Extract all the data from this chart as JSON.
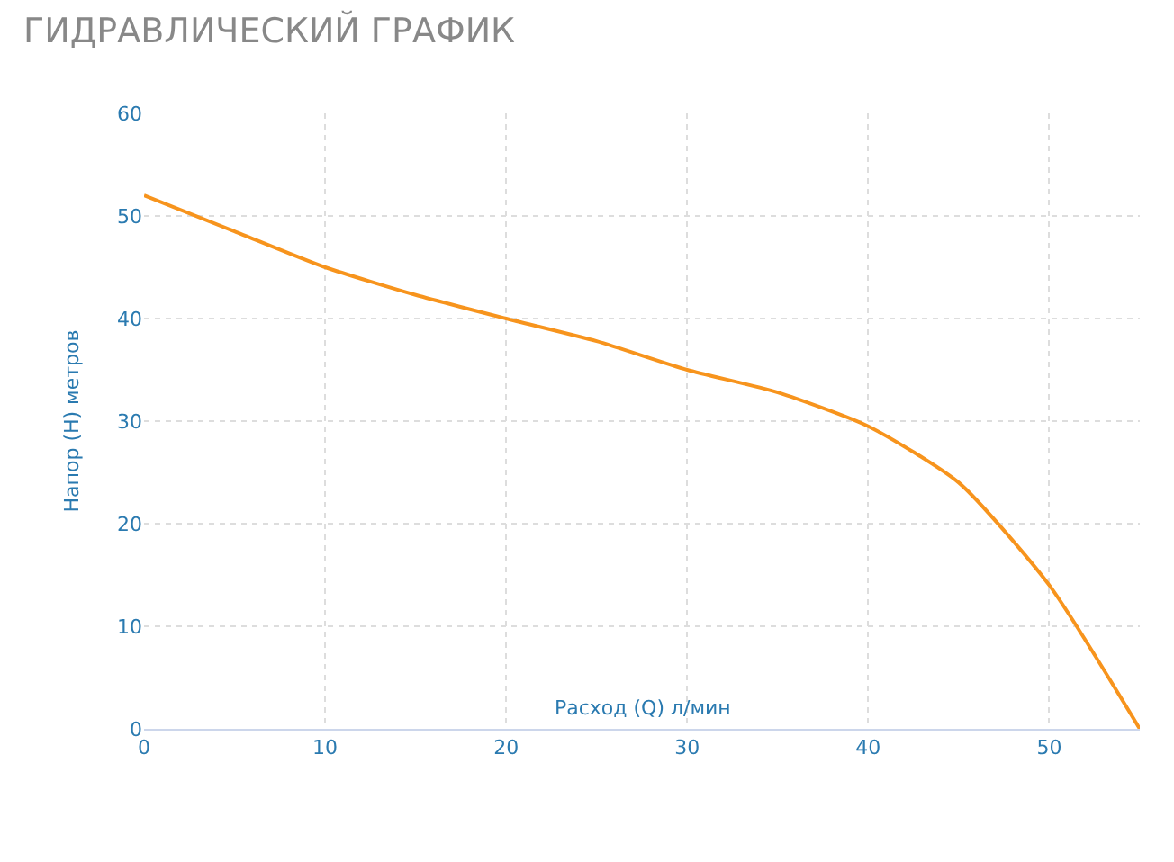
{
  "chart_data": {
    "type": "line",
    "title": "ГИДРАВЛИЧЕСКИЙ ГРАФИК",
    "xlabel": "Расход (Q) л/мин",
    "ylabel": "Напор (H) метров",
    "x": [
      0,
      5,
      10,
      15,
      20,
      25,
      30,
      35,
      40,
      45,
      50,
      55
    ],
    "series": [
      {
        "color": "#f7941d",
        "values": [
          52,
          48.5,
          45,
          42.3,
          40,
          37.8,
          35,
          32.8,
          29.5,
          24,
          14,
          0
        ]
      }
    ],
    "xlim": [
      0,
      55
    ],
    "ylim": [
      0,
      60
    ],
    "xticks": [
      0,
      10,
      20,
      30,
      40,
      50
    ],
    "yticks": [
      0,
      10,
      20,
      30,
      40,
      50,
      60
    ],
    "grid": true,
    "marker": "none",
    "line_style": "solid"
  }
}
